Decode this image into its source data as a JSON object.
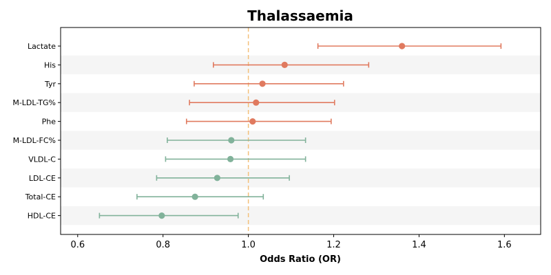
{
  "chart_data": {
    "type": "scatter",
    "subtype": "forest-plot",
    "title": "Thalassaemia",
    "xlabel": "Odds Ratio (OR)",
    "ylabel": "",
    "xlim": [
      0.56,
      1.685
    ],
    "xticks": [
      0.6,
      0.8,
      1.0,
      1.2,
      1.4,
      1.6
    ],
    "xtick_labels": [
      "0.6",
      "0.8",
      "1.0",
      "1.2",
      "1.4",
      "1.6"
    ],
    "reference_line": 1.0,
    "reference_color": "#f4c07a",
    "colors": {
      "positive": "#e07a5f",
      "negative": "#81b29a",
      "band": "#f5f5f5"
    },
    "categories": [
      "Lactate",
      "His",
      "Tyr",
      "M-LDL-TG%",
      "Phe",
      "M-LDL-FC%",
      "VLDL-C",
      "LDL-CE",
      "Total-CE",
      "HDL-CE"
    ],
    "or": [
      1.36,
      1.085,
      1.033,
      1.018,
      1.01,
      0.96,
      0.958,
      0.927,
      0.875,
      0.797
    ],
    "ci_low": [
      1.163,
      0.918,
      0.873,
      0.862,
      0.855,
      0.81,
      0.806,
      0.785,
      0.739,
      0.651
    ],
    "ci_high": [
      1.592,
      1.282,
      1.223,
      1.202,
      1.194,
      1.134,
      1.134,
      1.096,
      1.035,
      0.976
    ],
    "grid": false
  }
}
